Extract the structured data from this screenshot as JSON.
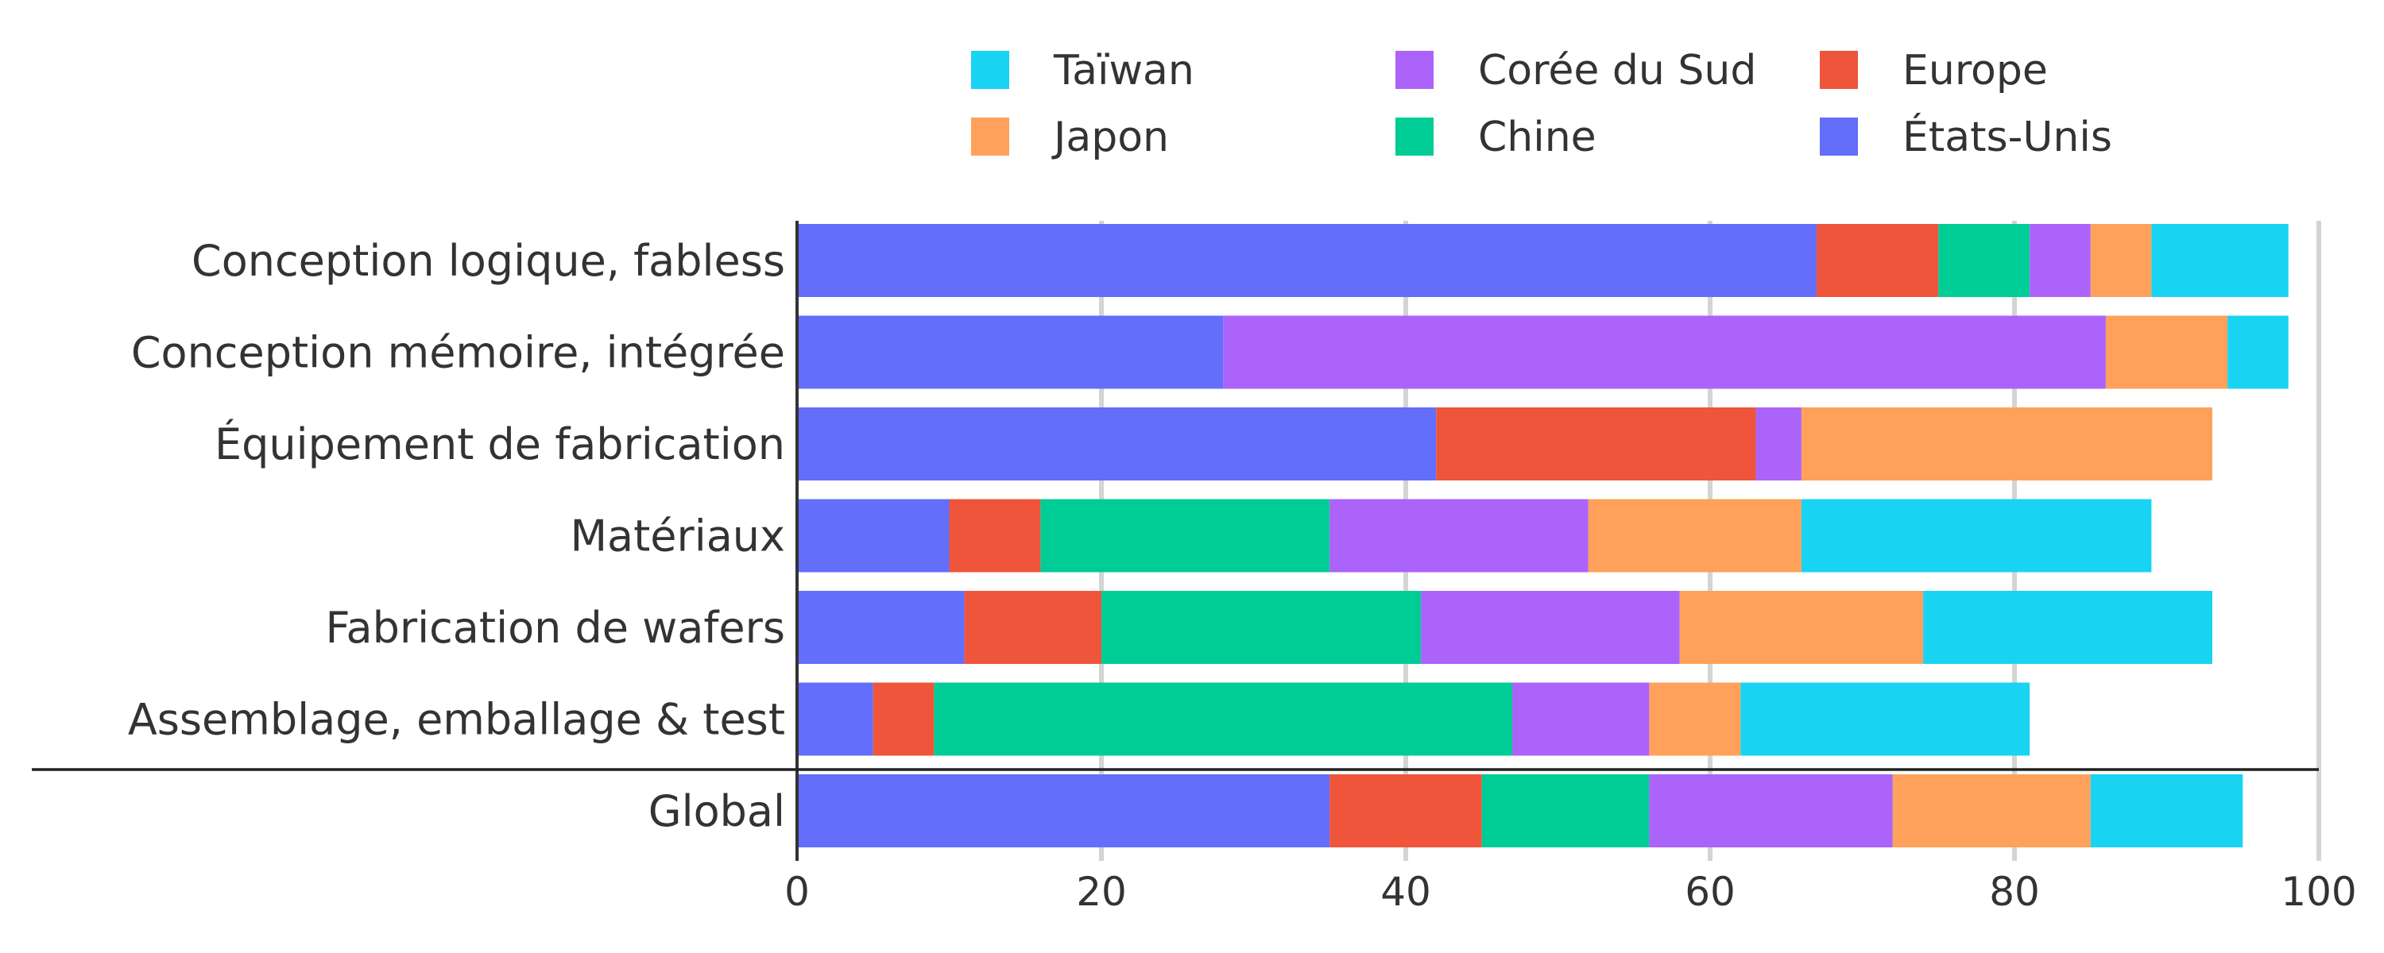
{
  "chart_data": {
    "type": "bar",
    "orientation": "horizontal",
    "stacked": true,
    "title": "",
    "xlabel": "",
    "ylabel": "",
    "xlim": [
      0,
      100
    ],
    "xticks": [
      "0",
      "20",
      "40",
      "60",
      "80",
      "100"
    ],
    "grid": true,
    "legend_position": "top",
    "categories": [
      "Conception logique, fabless",
      "Conception mémoire, intégrée",
      "Équipement de fabrication",
      "Matériaux",
      "Fabrication de wafers",
      "Assemblage, emballage & test",
      "Global"
    ],
    "series": [
      {
        "name": "États-Unis",
        "color": "#636EFA",
        "values": [
          67,
          28,
          42,
          10,
          11,
          5,
          35
        ]
      },
      {
        "name": "Europe",
        "color": "#EF553B",
        "values": [
          8,
          0,
          21,
          6,
          9,
          4,
          10
        ]
      },
      {
        "name": "Chine",
        "color": "#00CC96",
        "values": [
          6,
          0,
          0,
          19,
          21,
          38,
          11
        ]
      },
      {
        "name": "Corée du Sud",
        "color": "#AB63FA",
        "values": [
          4,
          58,
          3,
          17,
          17,
          9,
          16
        ]
      },
      {
        "name": "Japon",
        "color": "#FFA15A",
        "values": [
          4,
          8,
          27,
          14,
          16,
          6,
          13
        ]
      },
      {
        "name": "Taïwan",
        "color": "#19D3F3",
        "values": [
          9,
          4,
          0,
          23,
          19,
          19,
          10
        ]
      }
    ],
    "legend_order": [
      "Taïwan",
      "Japon",
      "Corée du Sud",
      "Chine",
      "Europe",
      "États-Unis"
    ]
  }
}
